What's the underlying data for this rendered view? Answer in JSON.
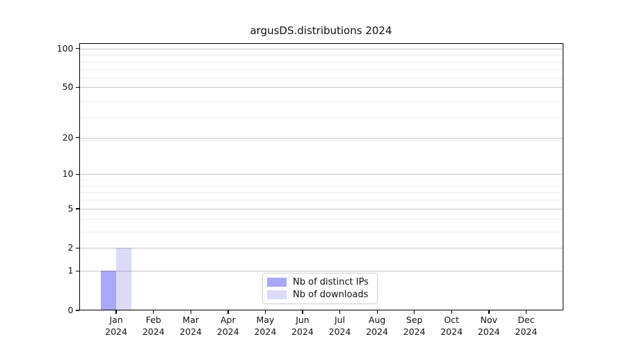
{
  "chart_data": {
    "type": "bar",
    "title": "argusDS.distributions 2024",
    "categories": [
      {
        "month": "Jan",
        "year": "2024"
      },
      {
        "month": "Feb",
        "year": "2024"
      },
      {
        "month": "Mar",
        "year": "2024"
      },
      {
        "month": "Apr",
        "year": "2024"
      },
      {
        "month": "May",
        "year": "2024"
      },
      {
        "month": "Jun",
        "year": "2024"
      },
      {
        "month": "Jul",
        "year": "2024"
      },
      {
        "month": "Aug",
        "year": "2024"
      },
      {
        "month": "Sep",
        "year": "2024"
      },
      {
        "month": "Oct",
        "year": "2024"
      },
      {
        "month": "Nov",
        "year": "2024"
      },
      {
        "month": "Dec",
        "year": "2024"
      }
    ],
    "series": [
      {
        "name": "Nb of distinct IPs",
        "color": "#a8a8f4",
        "values": [
          1,
          0,
          0,
          0,
          0,
          0,
          0,
          0,
          0,
          0,
          0,
          0
        ]
      },
      {
        "name": "Nb of downloads",
        "color": "#dbdbf8",
        "values": [
          2,
          0,
          0,
          0,
          0,
          0,
          0,
          0,
          0,
          0,
          0,
          0
        ]
      }
    ],
    "y_axis": {
      "scale": "log1p",
      "ylim": [
        0,
        110
      ],
      "major_ticks": [
        0,
        1,
        2,
        5,
        10,
        20,
        50,
        100
      ],
      "minor_ticks": [
        3,
        4,
        6,
        7,
        8,
        9,
        19,
        29,
        39,
        59,
        69,
        79,
        89
      ]
    },
    "grid": {
      "major_color": "rgba(0,0,0,0.22)",
      "minor_color": "rgba(0,0,0,0.08)"
    },
    "legend": {
      "position": "lower center",
      "border_color": "#cfcfcf"
    },
    "spine_color": "#000000",
    "background": "#ffffff"
  }
}
